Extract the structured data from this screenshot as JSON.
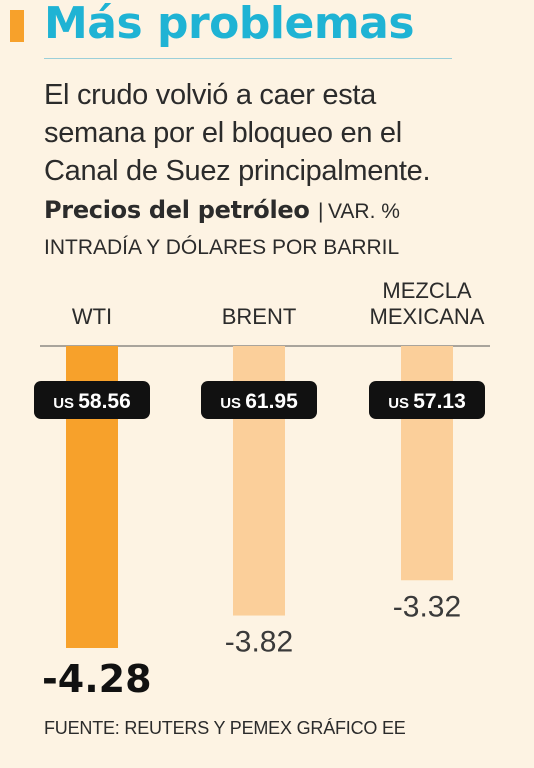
{
  "header": {
    "title": "Más problemas",
    "subtitle_lines": [
      "El crudo volvió a caer esta",
      "semana por el bloqueo en el",
      "Canal de Suez principalmente."
    ]
  },
  "chart_heading": {
    "title": "Precios del petróleo",
    "separator": "|",
    "unit_line1": "VAR. %",
    "unit_line2": "INTRADÍA Y DÓLARES POR BARRIL"
  },
  "source": "FUENTE: REUTERS Y PEMEX GRÁFICO EE",
  "colors": {
    "highlight_bar": "#f7a12b",
    "muted_bar": "#fbcf9a",
    "title": "#1fb3d4",
    "price_badge": "#111111",
    "background": "#fdf3e3"
  },
  "chart_data": {
    "type": "bar",
    "title": "Precios del petróleo",
    "categories": [
      "WTI",
      "BRENT",
      "MEZCLA MEXICANA"
    ],
    "category_label_lines": [
      [
        "WTI"
      ],
      [
        "BRENT"
      ],
      [
        "MEZCLA",
        "MEXICANA"
      ]
    ],
    "values": [
      -4.28,
      -3.82,
      -3.32
    ],
    "value_labels": [
      "-4.28",
      "-3.82",
      "-3.32"
    ],
    "price_currency": "US",
    "prices": [
      "58.56",
      "61.95",
      "57.13"
    ],
    "highlight_index": 0,
    "ylim": [
      -4.28,
      0
    ],
    "grid": false,
    "legend": "none"
  }
}
